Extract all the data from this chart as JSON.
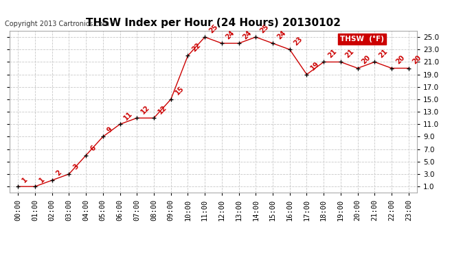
{
  "title": "THSW Index per Hour (24 Hours) 20130102",
  "copyright": "Copyright 2013 Cartronics.com",
  "legend_label": "THSW  (°F)",
  "x_labels": [
    "00:00",
    "01:00",
    "02:00",
    "03:00",
    "04:00",
    "05:00",
    "06:00",
    "07:00",
    "08:00",
    "09:00",
    "10:00",
    "11:00",
    "12:00",
    "13:00",
    "14:00",
    "15:00",
    "16:00",
    "17:00",
    "18:00",
    "19:00",
    "20:00",
    "21:00",
    "22:00",
    "23:00"
  ],
  "hours": [
    0,
    1,
    2,
    3,
    4,
    5,
    6,
    7,
    8,
    9,
    10,
    11,
    12,
    13,
    14,
    15,
    16,
    17,
    18,
    19,
    20,
    21,
    22,
    23
  ],
  "values": [
    1,
    1,
    2,
    3,
    6,
    9,
    11,
    12,
    12,
    15,
    22,
    25,
    24,
    24,
    25,
    24,
    23,
    19,
    21,
    21,
    20,
    21,
    20,
    20
  ],
  "point_labels": [
    "1",
    "1",
    "2",
    "3",
    "6",
    "9",
    "11",
    "12",
    "12",
    "15",
    "22",
    "25",
    "24",
    "24",
    "25",
    "24",
    "23",
    "19",
    "21",
    "21",
    "20",
    "21",
    "20",
    "20"
  ],
  "line_color": "#cc0000",
  "marker_color": "#000000",
  "bg_color": "#ffffff",
  "grid_color": "#c8c8c8",
  "ylim_min": 0,
  "ylim_max": 26,
  "yticks": [
    1.0,
    3.0,
    5.0,
    7.0,
    9.0,
    11.0,
    13.0,
    15.0,
    17.0,
    19.0,
    21.0,
    23.0,
    25.0
  ],
  "title_fontsize": 11,
  "tick_fontsize": 7.5,
  "legend_bg": "#cc0000",
  "legend_text_color": "#ffffff",
  "copyright_fontsize": 7,
  "label_fontsize": 8
}
